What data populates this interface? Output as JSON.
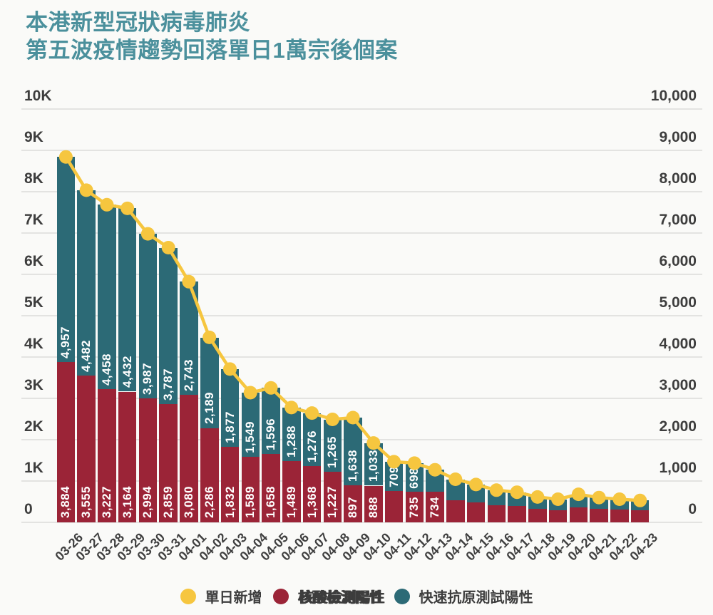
{
  "title": {
    "line1": "本港新型冠狀病毒肺炎",
    "line2": "第五波疫情趨勢回落單日1萬宗後個案"
  },
  "colors": {
    "background": "#fafaf8",
    "title": "#4b909c",
    "grid": "#e3e3e1",
    "axis_text": "#3d3d3d",
    "date_text": "#404040",
    "bar_pcr_red": "#9b2437",
    "bar_rat_teal": "#2c6a76",
    "line_yellow": "#f6c63f",
    "bar_label_text": "#ffffff"
  },
  "y_axis_left": {
    "ticks": [
      "10K",
      "9K",
      "8K",
      "7K",
      "6K",
      "5K",
      "4K",
      "3K",
      "2K",
      "1K",
      "0"
    ]
  },
  "y_axis_right": {
    "ticks": [
      "10,000",
      "9,000",
      "8,000",
      "7,000",
      "6,000",
      "5,000",
      "4,000",
      "3,000",
      "2,000",
      "1,000",
      "0"
    ]
  },
  "legend": {
    "items": [
      {
        "label": "單日新增",
        "swatch": "yellow-dot",
        "color": "#f6c63f"
      },
      {
        "label": "核酸檢測陽性",
        "swatch": "red-dot",
        "color": "#9b2437"
      },
      {
        "label": "快速抗原測試陽性",
        "swatch": "teal-dot",
        "color": "#2c6a76"
      }
    ]
  },
  "chart_data": {
    "type": "bar",
    "subtype": "stacked-bars-with-line-overlay",
    "title": "本港新型冠狀病毒肺炎 第五波疫情趨勢回落單日1萬宗後個案",
    "xlabel": "",
    "ylabel": "",
    "ylim": [
      0,
      10000
    ],
    "grid": "horizontal",
    "legend_position": "bottom",
    "categories": [
      "03-26",
      "03-27",
      "03-28",
      "03-29",
      "03-30",
      "03-31",
      "04-01",
      "04-02",
      "04-03",
      "04-04",
      "04-05",
      "04-06",
      "04-07",
      "04-08",
      "04-09",
      "04-10",
      "04-11",
      "04-12",
      "04-13",
      "04-14",
      "04-15",
      "04-16",
      "04-17",
      "04-18",
      "04-19",
      "04-20",
      "04-21",
      "04-22",
      "04-23"
    ],
    "series": [
      {
        "name": "核酸檢測陽性",
        "type": "bar",
        "stack": "cases",
        "color": "#9b2437",
        "values": [
          3884,
          3555,
          3227,
          3164,
          2994,
          2859,
          3080,
          2286,
          1832,
          1589,
          1658,
          1489,
          1368,
          1227,
          897,
          888,
          758,
          735,
          734,
          529,
          480,
          420,
          390,
          330,
          300,
          370,
          330,
          310,
          300
        ],
        "data_labels": [
          "3,884",
          "3,555",
          "3,227",
          "3,164",
          "2,994",
          "2,859",
          "3,080",
          "2,286",
          "1,832",
          "1,589",
          "1,658",
          "1,489",
          "1,368",
          "1,227",
          "897",
          "888",
          null,
          "735",
          "734",
          null,
          null,
          null,
          null,
          null,
          null,
          null,
          null,
          null,
          null
        ]
      },
      {
        "name": "快速抗原測試陽性",
        "type": "bar",
        "stack": "cases",
        "color": "#2c6a76",
        "values": [
          4957,
          4482,
          4458,
          4432,
          3987,
          3787,
          2743,
          2189,
          1877,
          1549,
          1596,
          1288,
          1276,
          1265,
          1638,
          1033,
          709,
          698,
          538,
          514,
          435,
          360,
          340,
          283,
          260,
          310,
          270,
          250,
          230
        ],
        "data_labels": [
          "4,957",
          "4,482",
          "4,458",
          "4,432",
          "3,987",
          "3,787",
          "2,743",
          "2,189",
          "1,877",
          "1,549",
          "1,596",
          "1,288",
          "1,276",
          "1,265",
          "1,638",
          "1,033",
          "709",
          "698",
          null,
          null,
          null,
          null,
          null,
          null,
          null,
          null,
          null,
          null,
          null
        ]
      },
      {
        "name": "單日新增",
        "type": "line",
        "color": "#f6c63f",
        "marker": "circle",
        "values": [
          8841,
          8037,
          7685,
          7596,
          6981,
          6646,
          5823,
          4475,
          3709,
          3138,
          3254,
          2777,
          2644,
          2492,
          2535,
          1921,
          1467,
          1433,
          1272,
          1043,
          915,
          780,
          730,
          613,
          560,
          680,
          600,
          560,
          530
        ]
      }
    ]
  }
}
